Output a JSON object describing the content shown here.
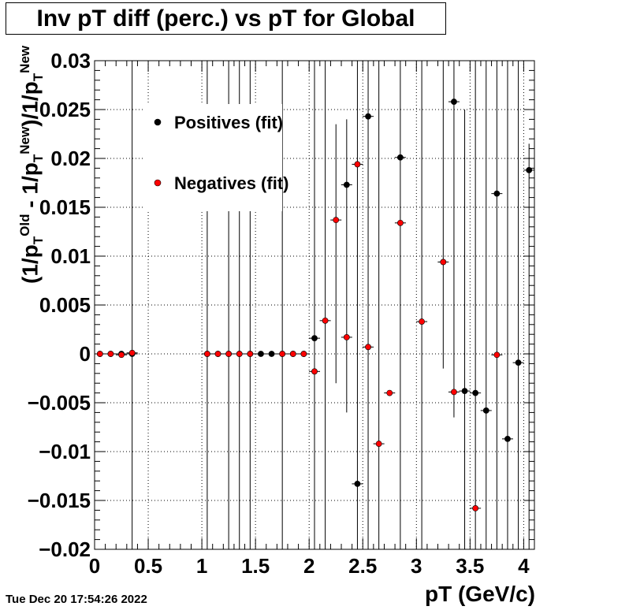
{
  "title": "Inv pT diff (perc.) vs pT for Global",
  "date_stamp": "Tue Dec 20 17:54:26 2022",
  "chart_data": {
    "type": "scatter",
    "title": "Inv pT diff (perc.) vs pT for Global",
    "xlabel": "pT (GeV/c)",
    "ylabel": "(1/p_T^Old - 1/p_T^New)/1/p_T^New",
    "xlim": [
      0,
      4.1
    ],
    "ylim": [
      -0.02,
      0.03
    ],
    "x_ticks": [
      "0",
      "0.5",
      "1",
      "1.5",
      "2",
      "2.5",
      "3",
      "3.5",
      "4"
    ],
    "x_tick_values": [
      0,
      0.5,
      1,
      1.5,
      2,
      2.5,
      3,
      3.5,
      4
    ],
    "y_ticks": [
      "0.03",
      "0.025",
      "0.02",
      "0.015",
      "0.01",
      "0.005",
      "0",
      "−0.005",
      "−0.01",
      "−0.015",
      "−0.02"
    ],
    "y_tick_values": [
      0.03,
      0.025,
      0.02,
      0.015,
      0.01,
      0.005,
      0,
      -0.005,
      -0.01,
      -0.015,
      -0.02
    ],
    "grid": true,
    "legend_position": "top-left",
    "series": [
      {
        "name": "Positives (fit)",
        "color": "#000000",
        "points": [
          {
            "x": 0.05,
            "y": 0.0
          },
          {
            "x": 0.15,
            "y": 0.0
          },
          {
            "x": 0.25,
            "y": 0.0
          },
          {
            "x": 0.35,
            "y": 0.0
          },
          {
            "x": 1.05,
            "y": 0.0
          },
          {
            "x": 1.15,
            "y": 0.0
          },
          {
            "x": 1.25,
            "y": 0.0
          },
          {
            "x": 1.35,
            "y": 0.0
          },
          {
            "x": 1.45,
            "y": 0.0
          },
          {
            "x": 1.55,
            "y": 0.0
          },
          {
            "x": 1.65,
            "y": 0.0
          },
          {
            "x": 1.75,
            "y": 0.0
          },
          {
            "x": 1.85,
            "y": 0.0
          },
          {
            "x": 1.95,
            "y": 0.0
          },
          {
            "x": 2.05,
            "y": 0.0016
          },
          {
            "x": 2.35,
            "y": 0.0173
          },
          {
            "x": 2.45,
            "y": -0.0133
          },
          {
            "x": 2.55,
            "y": 0.0243
          },
          {
            "x": 2.85,
            "y": 0.0201
          },
          {
            "x": 3.35,
            "y": 0.0258
          },
          {
            "x": 3.45,
            "y": -0.0038
          },
          {
            "x": 3.55,
            "y": -0.004
          },
          {
            "x": 3.65,
            "y": -0.0058
          },
          {
            "x": 3.75,
            "y": 0.0164
          },
          {
            "x": 3.85,
            "y": -0.0087
          },
          {
            "x": 3.95,
            "y": -0.0009
          },
          {
            "x": 4.05,
            "y": 0.0188
          }
        ]
      },
      {
        "name": "Negatives (fit)",
        "color": "#ff0000",
        "points": [
          {
            "x": 0.05,
            "y": 0.0
          },
          {
            "x": 0.15,
            "y": 0.0
          },
          {
            "x": 0.25,
            "y": -0.0001
          },
          {
            "x": 0.35,
            "y": 0.0001
          },
          {
            "x": 1.05,
            "y": 0.0
          },
          {
            "x": 1.15,
            "y": 0.0
          },
          {
            "x": 1.25,
            "y": 0.0
          },
          {
            "x": 1.35,
            "y": 0.0
          },
          {
            "x": 1.45,
            "y": 0.0
          },
          {
            "x": 1.75,
            "y": 0.0
          },
          {
            "x": 1.85,
            "y": 0.0
          },
          {
            "x": 1.95,
            "y": 0.0
          },
          {
            "x": 2.05,
            "y": -0.0018
          },
          {
            "x": 2.15,
            "y": 0.0034
          },
          {
            "x": 2.25,
            "y": 0.0137
          },
          {
            "x": 2.35,
            "y": 0.0017
          },
          {
            "x": 2.45,
            "y": 0.0194
          },
          {
            "x": 2.55,
            "y": 0.0007
          },
          {
            "x": 2.65,
            "y": -0.0092
          },
          {
            "x": 2.75,
            "y": -0.004
          },
          {
            "x": 2.85,
            "y": 0.0134
          },
          {
            "x": 3.05,
            "y": 0.0033
          },
          {
            "x": 3.25,
            "y": 0.0094
          },
          {
            "x": 3.35,
            "y": -0.0039
          },
          {
            "x": 3.55,
            "y": -0.0158
          },
          {
            "x": 3.75,
            "y": -0.0001
          }
        ]
      }
    ],
    "error_bars": [
      {
        "x": 0.35,
        "y": 0.0,
        "lo": -0.02,
        "hi": 0.03
      },
      {
        "x": 1.05,
        "y": 0.0,
        "lo": -0.02,
        "hi": 0.03
      },
      {
        "x": 1.25,
        "y": 0.0,
        "lo": -0.02,
        "hi": 0.03
      },
      {
        "x": 1.35,
        "y": 0.0,
        "lo": -0.02,
        "hi": 0.03
      },
      {
        "x": 1.45,
        "y": 0.0,
        "lo": -0.02,
        "hi": 0.03
      },
      {
        "x": 1.75,
        "y": 0.0,
        "lo": -0.02,
        "hi": 0.03
      },
      {
        "x": 2.05,
        "y": 0.0,
        "lo": -0.02,
        "hi": 0.03
      },
      {
        "x": 2.15,
        "y": 0.0034,
        "lo": -0.02,
        "hi": 0.03
      },
      {
        "x": 2.25,
        "y": 0.0137,
        "lo": -0.003,
        "hi": 0.0235
      },
      {
        "x": 2.35,
        "y": 0.0017,
        "lo": -0.006,
        "hi": 0.024
      },
      {
        "x": 2.45,
        "y": 0.0194,
        "lo": -0.02,
        "hi": 0.03
      },
      {
        "x": 2.55,
        "y": 0.0007,
        "lo": -0.02,
        "hi": 0.03
      },
      {
        "x": 2.65,
        "y": -0.0092,
        "lo": -0.02,
        "hi": 0.03
      },
      {
        "x": 2.85,
        "y": 0.0134,
        "lo": -0.02,
        "hi": 0.03
      },
      {
        "x": 3.05,
        "y": 0.0033,
        "lo": -0.02,
        "hi": 0.03
      },
      {
        "x": 3.25,
        "y": 0.0094,
        "lo": -0.0015,
        "hi": 0.03
      },
      {
        "x": 3.35,
        "y": 0.0258,
        "lo": -0.0065,
        "hi": 0.03
      },
      {
        "x": 3.45,
        "y": -0.0038,
        "lo": -0.02,
        "hi": 0.025
      },
      {
        "x": 3.55,
        "y": -0.004,
        "lo": -0.02,
        "hi": 0.03
      },
      {
        "x": 3.65,
        "y": -0.0058,
        "lo": -0.02,
        "hi": 0.03
      },
      {
        "x": 3.75,
        "y": 0.0164,
        "lo": -0.02,
        "hi": 0.03
      },
      {
        "x": 3.85,
        "y": -0.0087,
        "lo": -0.02,
        "hi": 0.03
      },
      {
        "x": 3.95,
        "y": -0.0009,
        "lo": -0.02,
        "hi": 0.03
      },
      {
        "x": 4.05,
        "y": 0.0188,
        "lo": -0.02,
        "hi": 0.0215
      }
    ]
  }
}
